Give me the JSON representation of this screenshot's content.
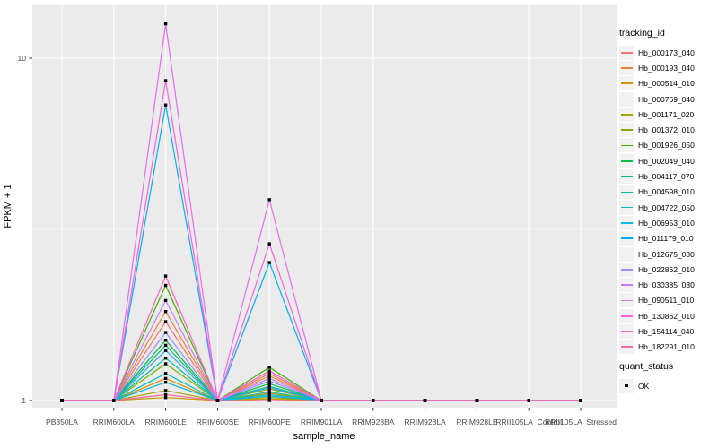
{
  "figure": {
    "xlabel": "sample_name",
    "ylabel": "FPKM + 1",
    "tracking_legend_title": "tracking_id",
    "quant_legend_title": "quant_status",
    "quant_item_label": "OK",
    "colors": {
      "panel_bg": "#EBEBEB",
      "grid": "#FFFFFF",
      "axis_text": "#4D4D4D",
      "tick_mark": "#333333",
      "marker": "#000000",
      "legend_key_bg": "#F2F2F2"
    }
  },
  "chart_data": {
    "type": "line",
    "title": "",
    "xlabel": "sample_name",
    "ylabel": "FPKM + 1",
    "y_scale": "log10",
    "ylim_approx": [
      0.95,
      14.5
    ],
    "grid": "on",
    "legend_position": "right",
    "marker_shape": "black-square",
    "quant_status_legend": {
      "title": "quant_status",
      "items": [
        "OK"
      ]
    },
    "x_categories": [
      "PB350LA",
      "RRIM600LA",
      "RRIM600LE",
      "RRIM600SE",
      "RRIM600PE",
      "RRIM901LA",
      "RRIM928BA",
      "RRIM928LA",
      "RRIM928LE",
      "RRII105LA_Control",
      "RRII105LA_Stressed"
    ],
    "y_ticks": [
      {
        "label": "10",
        "value": 10
      },
      {
        "label": "1",
        "value": 1
      }
    ],
    "minor_grid_values": [
      3.162
    ],
    "series": [
      {
        "name": "Hb_000173_040",
        "color": "#F8766D",
        "values": [
          1,
          1,
          1.7,
          1,
          1.2,
          1,
          1,
          1,
          1,
          1,
          1
        ]
      },
      {
        "name": "Hb_000193_040",
        "color": "#EA8331",
        "values": [
          1,
          1,
          1.82,
          1,
          1.18,
          1,
          1,
          1,
          1,
          1,
          1
        ]
      },
      {
        "name": "Hb_000514_010",
        "color": "#D89000",
        "values": [
          1,
          1,
          1.16,
          1,
          1.05,
          1,
          1,
          1,
          1,
          1,
          1
        ]
      },
      {
        "name": "Hb_000769_040",
        "color": "#C09B00",
        "values": [
          1,
          1,
          1.02,
          1,
          1.01,
          1,
          1,
          1,
          1,
          1,
          1
        ]
      },
      {
        "name": "Hb_001171_020",
        "color": "#A3A500",
        "values": [
          1,
          1,
          1.07,
          1,
          1.02,
          1,
          1,
          1,
          1,
          1,
          1
        ]
      },
      {
        "name": "Hb_001372_010",
        "color": "#7CAE00",
        "values": [
          1,
          1,
          1.28,
          1,
          1.08,
          1,
          1,
          1,
          1,
          1,
          1
        ]
      },
      {
        "name": "Hb_001926_050",
        "color": "#39B600",
        "values": [
          1,
          1,
          2.17,
          1,
          1.25,
          1,
          1,
          1,
          1,
          1,
          1
        ]
      },
      {
        "name": "Hb_002049_040",
        "color": "#00BB4E",
        "values": [
          1,
          1,
          1.5,
          1,
          1.12,
          1,
          1,
          1,
          1,
          1,
          1
        ]
      },
      {
        "name": "Hb_004117_070",
        "color": "#00BF7D",
        "values": [
          1,
          1,
          1.45,
          1,
          1.1,
          1,
          1,
          1,
          1,
          1,
          1
        ]
      },
      {
        "name": "Hb_004598_010",
        "color": "#00C1A3",
        "values": [
          1,
          1,
          1.33,
          1,
          1.06,
          1,
          1,
          1,
          1,
          1,
          1
        ]
      },
      {
        "name": "Hb_004722_050",
        "color": "#00BFC4",
        "values": [
          1,
          1,
          1.2,
          1,
          1.04,
          1,
          1,
          1,
          1,
          1,
          1
        ]
      },
      {
        "name": "Hb_006953_010",
        "color": "#00BAE0",
        "values": [
          1,
          1,
          1.13,
          1,
          1.03,
          1,
          1,
          1,
          1,
          1,
          1
        ]
      },
      {
        "name": "Hb_011179_010",
        "color": "#00B0F6",
        "values": [
          1,
          1,
          7.3,
          1,
          2.53,
          1,
          1,
          1,
          1,
          1,
          1
        ]
      },
      {
        "name": "Hb_012675_030",
        "color": "#35A2FF",
        "values": [
          1,
          1,
          1.4,
          1,
          1.09,
          1,
          1,
          1,
          1,
          1,
          1
        ]
      },
      {
        "name": "Hb_022862_010",
        "color": "#9590FF",
        "values": [
          1,
          1,
          1.58,
          1,
          1.14,
          1,
          1,
          1,
          1,
          1,
          1
        ]
      },
      {
        "name": "Hb_030385_030",
        "color": "#C77CFF",
        "values": [
          1,
          1,
          1.96,
          1,
          1.16,
          1,
          1,
          1,
          1,
          1,
          1
        ]
      },
      {
        "name": "Hb_090511_010",
        "color": "#E76BF3",
        "values": [
          1,
          1,
          12.6,
          1,
          3.86,
          1,
          1,
          1,
          1,
          1,
          1
        ]
      },
      {
        "name": "Hb_130862_010",
        "color": "#FA62DB",
        "values": [
          1,
          1,
          8.6,
          1,
          2.87,
          1,
          1,
          1,
          1,
          1,
          1
        ]
      },
      {
        "name": "Hb_154114_040",
        "color": "#FF61C3",
        "values": [
          1,
          1,
          2.31,
          1,
          1.22,
          1,
          1,
          1,
          1,
          1,
          1
        ]
      },
      {
        "name": "Hb_182291_010",
        "color": "#FF67A4",
        "values": [
          1,
          1,
          1.04,
          1,
          1.0,
          1,
          1,
          1,
          1,
          1,
          1
        ]
      }
    ]
  }
}
